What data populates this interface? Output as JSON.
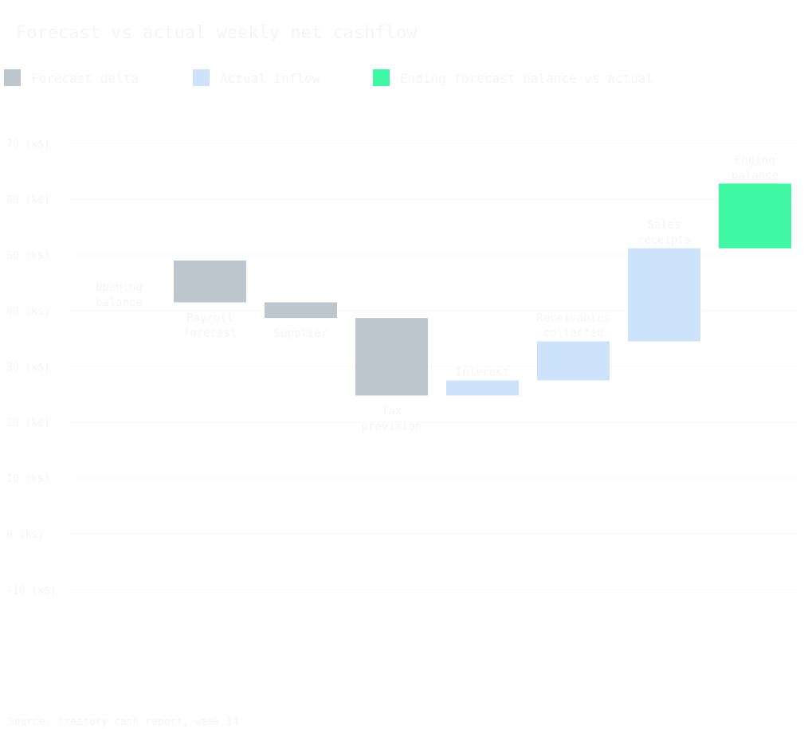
{
  "colors": {
    "background": "#ffffff",
    "text": "#f3f5f7",
    "grid": "#f7f8fa",
    "forecast_bar": "#bdc6cc",
    "actual_bar": "#cce3fb",
    "total_bar": "#40f7a3"
  },
  "chart_data": {
    "type": "waterfall",
    "title": "Forecast vs actual weekly net cashflow",
    "legend": [
      {
        "label": "Forecast delta",
        "color": "#bdc6cc"
      },
      {
        "label": "Actual inflow",
        "color": "#cce3fb"
      },
      {
        "label": "Ending forecast balance vs actual",
        "color": "#40f7a3"
      }
    ],
    "legend_position": "top-left",
    "y_axis": {
      "ylim": [
        -10,
        80
      ],
      "ticks": [
        70,
        60,
        50,
        40,
        30,
        20,
        10,
        0,
        -10
      ],
      "tick_labels": [
        "70 (k$)",
        "60 (k$)",
        "50 (k$)",
        "40 (k$)",
        "30 (k$)",
        "20 (k$)",
        "10 (k$)",
        "0 (k$)",
        "-10 (k$)"
      ]
    },
    "grid": true,
    "bars": [
      {
        "label": "Opening balance",
        "kind": "forecast",
        "start": 0,
        "end": 0,
        "label_lines": [
          "Opening",
          "balance"
        ]
      },
      {
        "label": "Payroll forecast",
        "kind": "forecast",
        "start": 49,
        "end": 41.5,
        "label_lines": [
          "Payroll",
          "forecast"
        ]
      },
      {
        "label": "Supplier",
        "kind": "forecast",
        "start": 41.5,
        "end": 38.7,
        "label_lines": [
          "Supplier"
        ]
      },
      {
        "label": "Tax provision",
        "kind": "forecast",
        "start": 38.7,
        "end": 24.8,
        "label_lines": [
          "Tax",
          "provision"
        ]
      },
      {
        "label": "Interest",
        "kind": "actual",
        "start": 24.8,
        "end": 27.5,
        "label_lines": [
          "Interest"
        ]
      },
      {
        "label": "Receivables collected",
        "kind": "actual",
        "start": 27.5,
        "end": 34.5,
        "label_lines": [
          "Receivables",
          "collected"
        ]
      },
      {
        "label": "Sales receipts",
        "kind": "actual",
        "start": 34.5,
        "end": 51.2,
        "label_lines": [
          "Sales",
          "receipts"
        ]
      },
      {
        "label": "Ending balance",
        "kind": "total",
        "start": 51.2,
        "end": 62.8,
        "label_lines": [
          "Ending",
          "balance"
        ]
      }
    ],
    "footnote": "Source: treasury cash report, week 14"
  }
}
